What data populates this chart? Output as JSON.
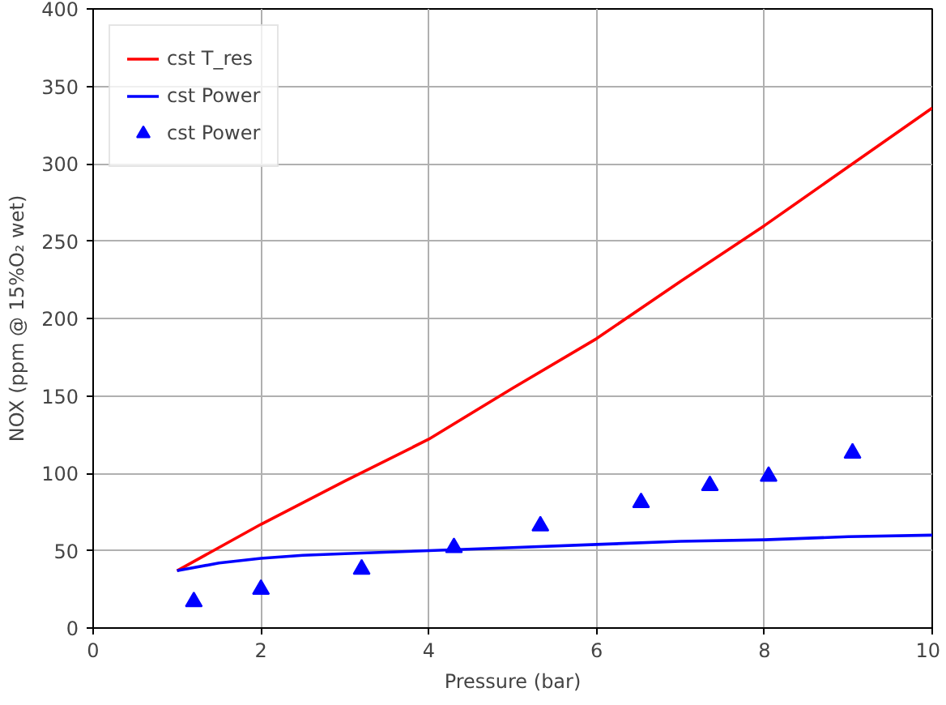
{
  "chart_data": {
    "type": "line",
    "xlabel": "Pressure (bar)",
    "ylabel": "NOX (ppm @ 15%O₂ wet)",
    "xlim": [
      0,
      10
    ],
    "ylim": [
      0,
      400
    ],
    "xticks": [
      0,
      2,
      4,
      6,
      8,
      10
    ],
    "yticks": [
      0,
      50,
      100,
      150,
      200,
      250,
      300,
      350,
      400
    ],
    "grid": true,
    "legend": "top left",
    "series": [
      {
        "name": "cst T_res",
        "color": "#ff0000",
        "x": [
          1,
          2,
          3,
          4,
          5,
          6,
          7,
          8,
          9,
          10
        ],
        "values": [
          37,
          67,
          95,
          122,
          155,
          187,
          224,
          260,
          298,
          336
        ]
      },
      {
        "name": "cst Power",
        "color": "#0000ff",
        "x": [
          1,
          1.5,
          2,
          2.5,
          3,
          4,
          5,
          6,
          7,
          8,
          9,
          10
        ],
        "values": [
          37,
          42,
          45,
          47,
          48,
          50,
          52,
          54,
          56,
          57,
          59,
          60
        ]
      },
      {
        "name": "cst Power",
        "color": "#0000ff",
        "type": "scatter",
        "marker": "triangle",
        "x": [
          1.2,
          2.0,
          3.2,
          4.3,
          5.33,
          6.53,
          7.35,
          8.05,
          9.05
        ],
        "values": [
          17,
          25,
          38,
          52,
          66,
          81,
          92,
          98,
          113
        ]
      }
    ]
  }
}
